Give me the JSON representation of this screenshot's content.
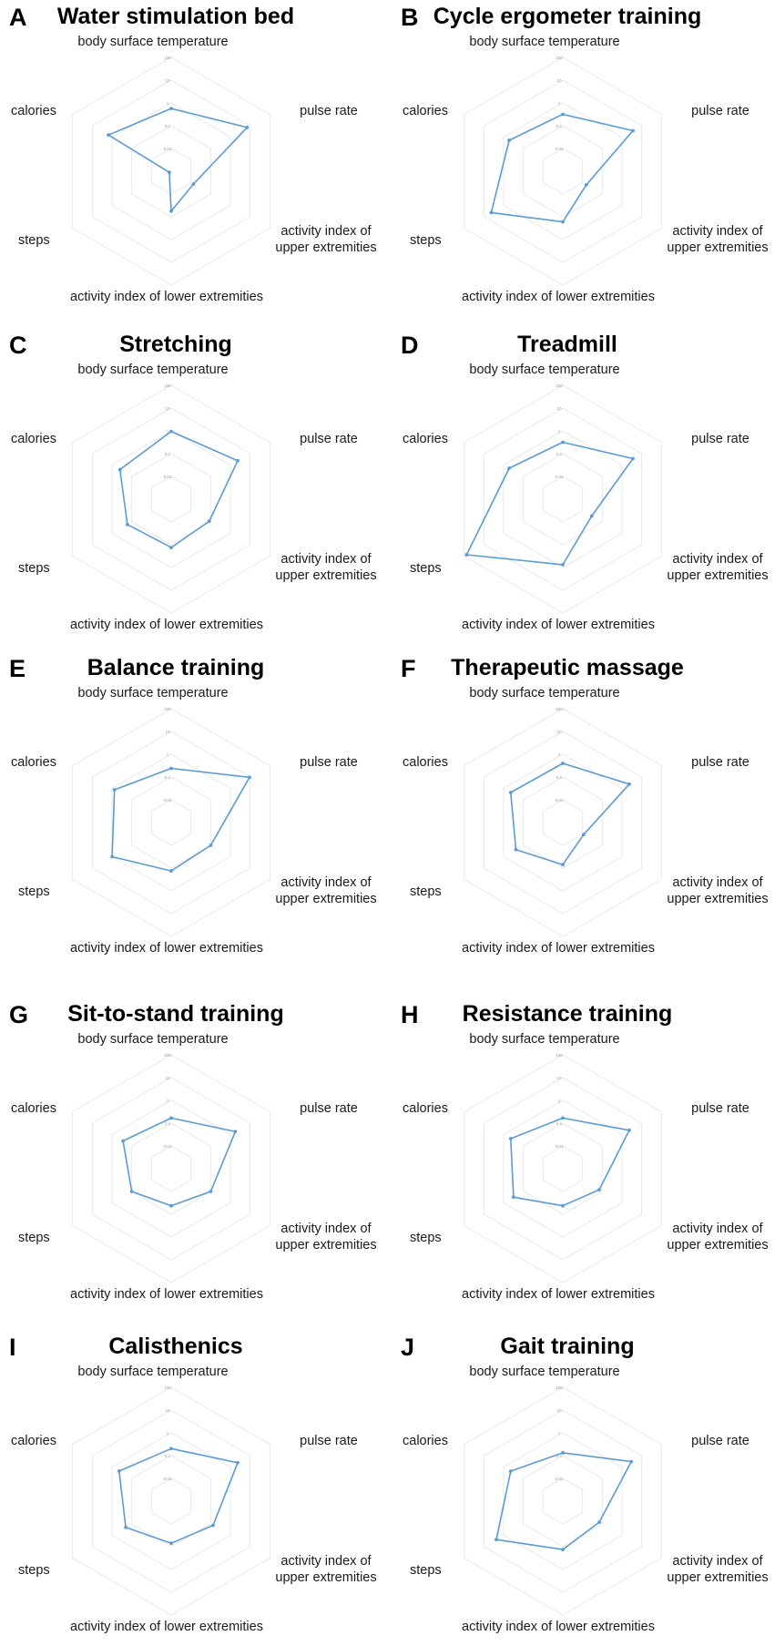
{
  "chart_data": [
    {
      "type": "radar",
      "panel": "A",
      "title": "Water stimulation bed",
      "axes": [
        "body surface temperature",
        "pulse rate",
        "activity index of upper extremities",
        "activity index of lower extremities",
        "steps",
        "calories"
      ],
      "scale": "log",
      "range": [
        0.01,
        100
      ],
      "ticks": [
        "100",
        "10",
        "1",
        "0.1",
        "0.01"
      ],
      "values": [
        1.6,
        12,
        0.08,
        0.25,
        0.012,
        3.5
      ],
      "color": "#5b9bd5"
    },
    {
      "type": "radar",
      "panel": "B",
      "title": "Cycle ergometer training",
      "axes": [
        "body surface temperature",
        "pulse rate",
        "activity index of upper extremities",
        "activity index of lower extremities",
        "steps",
        "calories"
      ],
      "scale": "log",
      "range": [
        0.01,
        100
      ],
      "ticks": [
        "100",
        "10",
        "1",
        "0.1",
        "0.01"
      ],
      "values": [
        1.0,
        7,
        0.09,
        0.6,
        8,
        1.5
      ],
      "color": "#5b9bd5"
    },
    {
      "type": "radar",
      "panel": "C",
      "title": "Stretching",
      "axes": [
        "body surface temperature",
        "pulse rate",
        "activity index of upper extremities",
        "activity index of lower extremities",
        "steps",
        "calories"
      ],
      "scale": "log",
      "range": [
        0.01,
        100
      ],
      "ticks": [
        "100",
        "10",
        "1",
        "0.1",
        "0.01"
      ],
      "values": [
        2.4,
        5,
        0.35,
        0.5,
        0.6,
        1.2
      ],
      "color": "#5b9bd5"
    },
    {
      "type": "radar",
      "panel": "D",
      "title": "Treadmill",
      "axes": [
        "body surface temperature",
        "pulse rate",
        "activity index of upper extremities",
        "activity index of lower extremities",
        "steps",
        "calories"
      ],
      "scale": "log",
      "range": [
        0.01,
        100
      ],
      "ticks": [
        "100",
        "10",
        "1",
        "0.1",
        "0.01"
      ],
      "values": [
        1.0,
        7,
        0.15,
        2.0,
        80,
        1.5
      ],
      "color": "#5b9bd5"
    },
    {
      "type": "radar",
      "panel": "E",
      "title": "Balance training",
      "axes": [
        "body surface temperature",
        "pulse rate",
        "activity index of upper extremities",
        "activity index of lower extremities",
        "steps",
        "calories"
      ],
      "scale": "log",
      "range": [
        0.01,
        100
      ],
      "ticks": [
        "100",
        "10",
        "1",
        "0.1",
        "0.01"
      ],
      "values": [
        0.8,
        15,
        0.4,
        0.5,
        2.5,
        2.0
      ],
      "color": "#5b9bd5"
    },
    {
      "type": "radar",
      "panel": "F",
      "title": "Therapeutic massage",
      "axes": [
        "body surface temperature",
        "pulse rate",
        "activity index of upper extremities",
        "activity index of lower extremities",
        "steps",
        "calories"
      ],
      "scale": "log",
      "range": [
        0.01,
        100
      ],
      "ticks": [
        "100",
        "10",
        "1",
        "0.1",
        "0.01"
      ],
      "values": [
        1.2,
        5,
        0.07,
        0.3,
        0.8,
        1.3
      ],
      "color": "#5b9bd5"
    },
    {
      "type": "radar",
      "panel": "G",
      "title": "Sit-to-stand training",
      "axes": [
        "body surface temperature",
        "pulse rate",
        "activity index of upper extremities",
        "activity index of lower extremities",
        "steps",
        "calories"
      ],
      "scale": "log",
      "range": [
        0.01,
        100
      ],
      "ticks": [
        "100",
        "10",
        "1",
        "0.1",
        "0.01"
      ],
      "values": [
        0.6,
        4,
        0.4,
        0.2,
        0.4,
        0.9
      ],
      "color": "#5b9bd5"
    },
    {
      "type": "radar",
      "panel": "H",
      "title": "Resistance training",
      "axes": [
        "body surface temperature",
        "pulse rate",
        "activity index of upper extremities",
        "activity index of lower extremities",
        "steps",
        "calories"
      ],
      "scale": "log",
      "range": [
        0.01,
        100
      ],
      "ticks": [
        "100",
        "10",
        "1",
        "0.1",
        "0.01"
      ],
      "values": [
        0.6,
        5,
        0.3,
        0.2,
        1.0,
        1.3
      ],
      "color": "#5b9bd5"
    },
    {
      "type": "radar",
      "panel": "I",
      "title": "Calisthenics",
      "axes": [
        "body surface temperature",
        "pulse rate",
        "activity index of upper extremities",
        "activity index of lower extremities",
        "steps",
        "calories"
      ],
      "scale": "log",
      "range": [
        0.01,
        100
      ],
      "ticks": [
        "100",
        "10",
        "1",
        "0.1",
        "0.01"
      ],
      "values": [
        0.7,
        5,
        0.5,
        0.3,
        0.7,
        1.3
      ],
      "color": "#5b9bd5"
    },
    {
      "type": "radar",
      "panel": "J",
      "title": "Gait training",
      "axes": [
        "body surface temperature",
        "pulse rate",
        "activity index of upper extremities",
        "activity index of lower extremities",
        "steps",
        "calories"
      ],
      "scale": "log",
      "range": [
        0.01,
        100
      ],
      "ticks": [
        "100",
        "10",
        "1",
        "0.1",
        "0.01"
      ],
      "values": [
        0.5,
        6,
        0.3,
        0.5,
        5,
        1.3
      ],
      "color": "#5b9bd5"
    }
  ],
  "axis_labels": {
    "body_surface_temperature": "body surface temperature",
    "pulse_rate": "pulse rate",
    "upper_line1": "activity index of",
    "upper_line2": "upper extremities",
    "lower": "activity index of lower extremities",
    "steps": "steps",
    "calories": "calories"
  }
}
